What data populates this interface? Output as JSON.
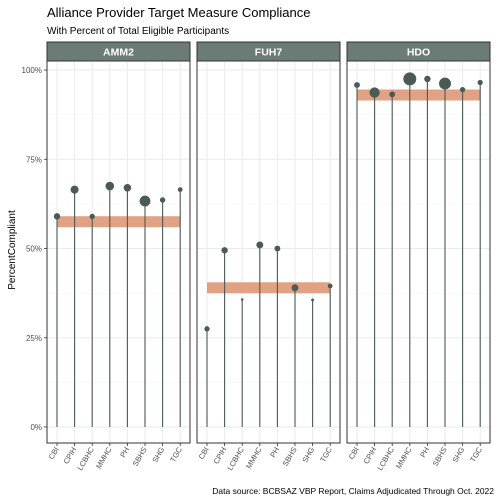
{
  "chart_data": {
    "type": "lollipop",
    "title": "Alliance Provider Target Measure Compliance",
    "subtitle": "With Percent of Total Eligible Participants",
    "ylabel": "PercentCompliant",
    "caption": "Data source: BCBSAZ VBP Report, Claims Adjudicated Through Oct. 2022",
    "ylim": [
      0,
      1
    ],
    "yticks": [
      0,
      0.25,
      0.5,
      0.75,
      1.0
    ],
    "ytick_labels": [
      "0%",
      "25%",
      "50%",
      "75%",
      "100%"
    ],
    "categories": [
      "CBI",
      "CPIH",
      "LCBHC",
      "MMHC",
      "PH",
      "SBHS",
      "SHG",
      "TGC"
    ],
    "colors": {
      "strip": "#6b7b76",
      "lollipop": "#4a5a55",
      "target_band": "#e0a283",
      "panel_border": "#333333",
      "grid": "#ebebeb"
    },
    "grid": true,
    "panels": [
      {
        "name": "AMM2",
        "target": 0.575,
        "values": [
          0.59,
          0.665,
          0.59,
          0.675,
          0.67,
          0.633,
          0.636,
          0.665
        ],
        "sizes": [
          0.4,
          0.55,
          0.3,
          0.6,
          0.5,
          0.8,
          0.3,
          0.25
        ]
      },
      {
        "name": "FUH7",
        "target": 0.39,
        "values": [
          0.275,
          0.495,
          0.357,
          0.51,
          0.5,
          0.39,
          0.356,
          0.395
        ],
        "sizes": [
          0.3,
          0.4,
          0.05,
          0.45,
          0.35,
          0.45,
          0.08,
          0.25
        ]
      },
      {
        "name": "HDO",
        "target": 0.93,
        "values": [
          0.958,
          0.937,
          0.932,
          0.975,
          0.975,
          0.962,
          0.945,
          0.965
        ],
        "sizes": [
          0.35,
          0.75,
          0.35,
          1.0,
          0.4,
          0.9,
          0.3,
          0.3
        ]
      }
    ]
  }
}
